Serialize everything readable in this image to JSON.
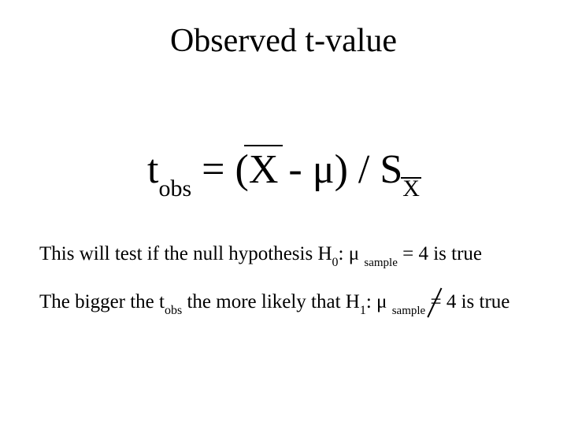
{
  "colors": {
    "background": "#ffffff",
    "text": "#000000"
  },
  "typography": {
    "family": "Times New Roman",
    "title_fontsize_pt": 32,
    "formula_fontsize_pt": 40,
    "body_fontsize_pt": 19
  },
  "title": "Observed t-value",
  "formula": {
    "t": "t",
    "t_sub": "obs",
    "equals": " = (",
    "xbar": "X",
    "minus_mu_close": " - μ) / S",
    "s_sub_x": "X"
  },
  "body": {
    "line1_a": "This will test if the null hypothesis H",
    "line1_h0": "0",
    "line1_b": ": μ ",
    "line1_sample": "sample",
    "line1_c": " = 4 is true",
    "line2_a": "The bigger the t",
    "line2_tsub": "obs",
    "line2_b": " the more likely that H",
    "line2_h1": "1",
    "line2_c": ": μ ",
    "line2_sample": "sample",
    "line2_d": " ",
    "line2_neq": "=",
    "line2_e": " 4 is true"
  }
}
